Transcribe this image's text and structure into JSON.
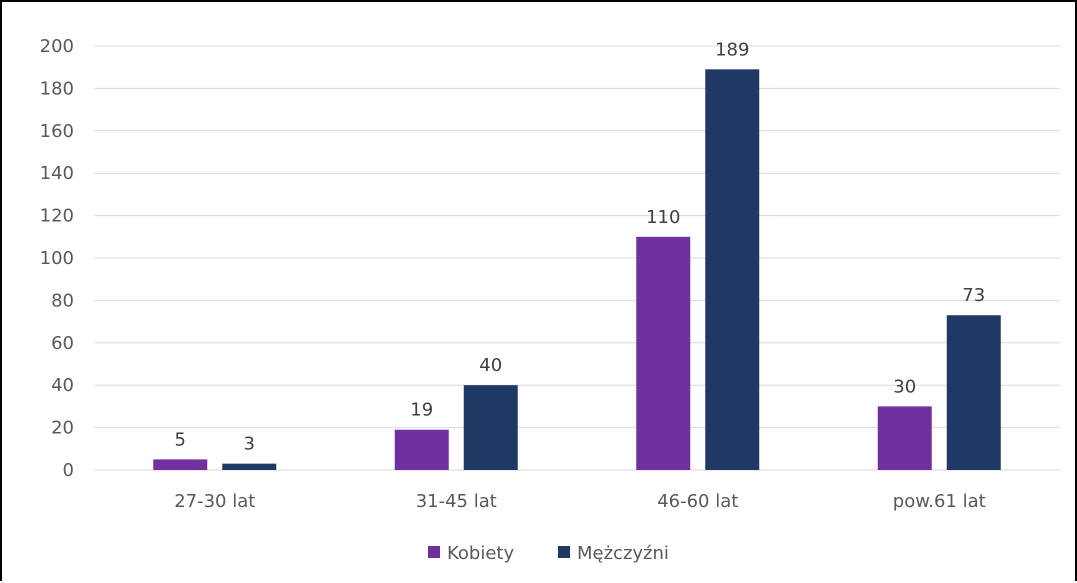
{
  "chart_data": {
    "type": "bar",
    "categories": [
      "27-30 lat",
      "31-45 lat",
      "46-60 lat",
      "pow.61 lat"
    ],
    "series": [
      {
        "name": "Kobiety",
        "values": [
          5,
          19,
          110,
          30
        ],
        "color": "#7030A0"
      },
      {
        "name": "Mężczyźni",
        "values": [
          3,
          40,
          189,
          73
        ],
        "color": "#203864"
      }
    ],
    "ylim": [
      0,
      200
    ],
    "yticks": [
      0,
      20,
      40,
      60,
      80,
      100,
      120,
      140,
      160,
      180,
      200
    ],
    "grid": true,
    "gridColor": "#D9D9D9",
    "legend": "bottom",
    "data_labels": true
  }
}
